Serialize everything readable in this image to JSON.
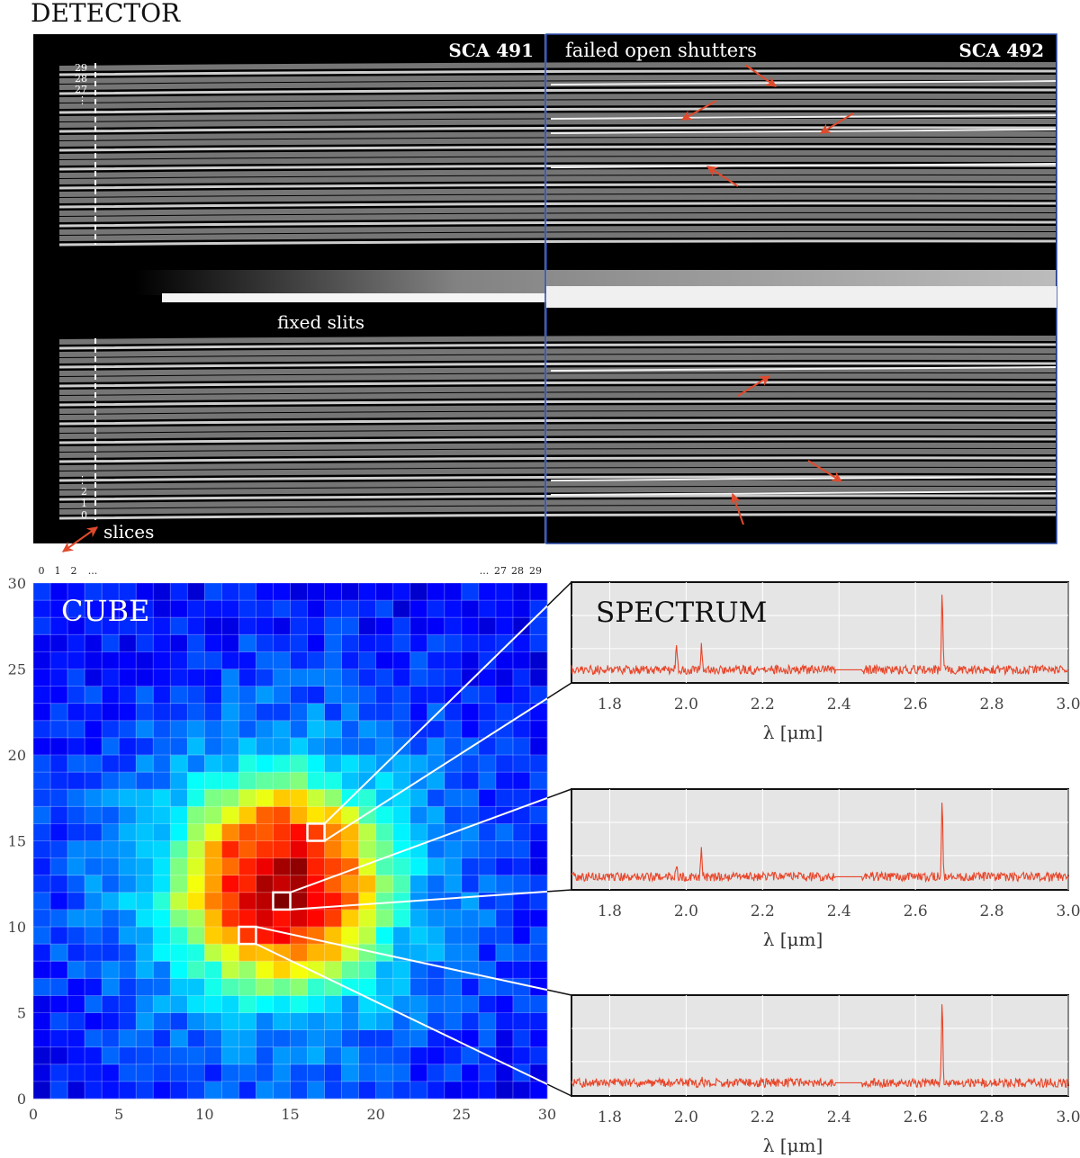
{
  "detector": {
    "title": "DETECTOR",
    "sca_left": "SCA 491",
    "sca_right": "SCA 492",
    "failed_label": "failed open shutters",
    "fixed_slits_label": "fixed slits",
    "slices_label": "slices",
    "slice_labels_top": [
      "29",
      "28",
      "27",
      "⋮"
    ],
    "slice_labels_bottom": [
      "⋮",
      "2",
      "1",
      "0"
    ],
    "slice_index_labels": [
      "0",
      "1",
      "2",
      "...",
      "...",
      "27",
      "28",
      "29"
    ],
    "arrow_color": "#e04a2c"
  },
  "cube": {
    "title": "CUBE",
    "size": 30,
    "xticks": [
      "0",
      "5",
      "10",
      "15",
      "20",
      "25",
      "30"
    ],
    "yticks": [
      "0",
      "5",
      "10",
      "15",
      "20",
      "25",
      "30"
    ],
    "colormap": "jet",
    "highlighted_pixels": [
      [
        16,
        15
      ],
      [
        14,
        11
      ],
      [
        12,
        9
      ]
    ]
  },
  "spectrum": {
    "title": "SPECTRUM",
    "xlabel": "λ [μm]",
    "xticks": [
      "1.8",
      "2.0",
      "2.2",
      "2.4",
      "2.6",
      "2.8",
      "3.0"
    ],
    "xlim": [
      1.7,
      3.0
    ],
    "line_color": "#e8462a",
    "background": "#e5e5e5",
    "gap": [
      2.39,
      2.46
    ],
    "emission_lines_um": [
      1.975,
      2.04,
      2.67
    ]
  }
}
